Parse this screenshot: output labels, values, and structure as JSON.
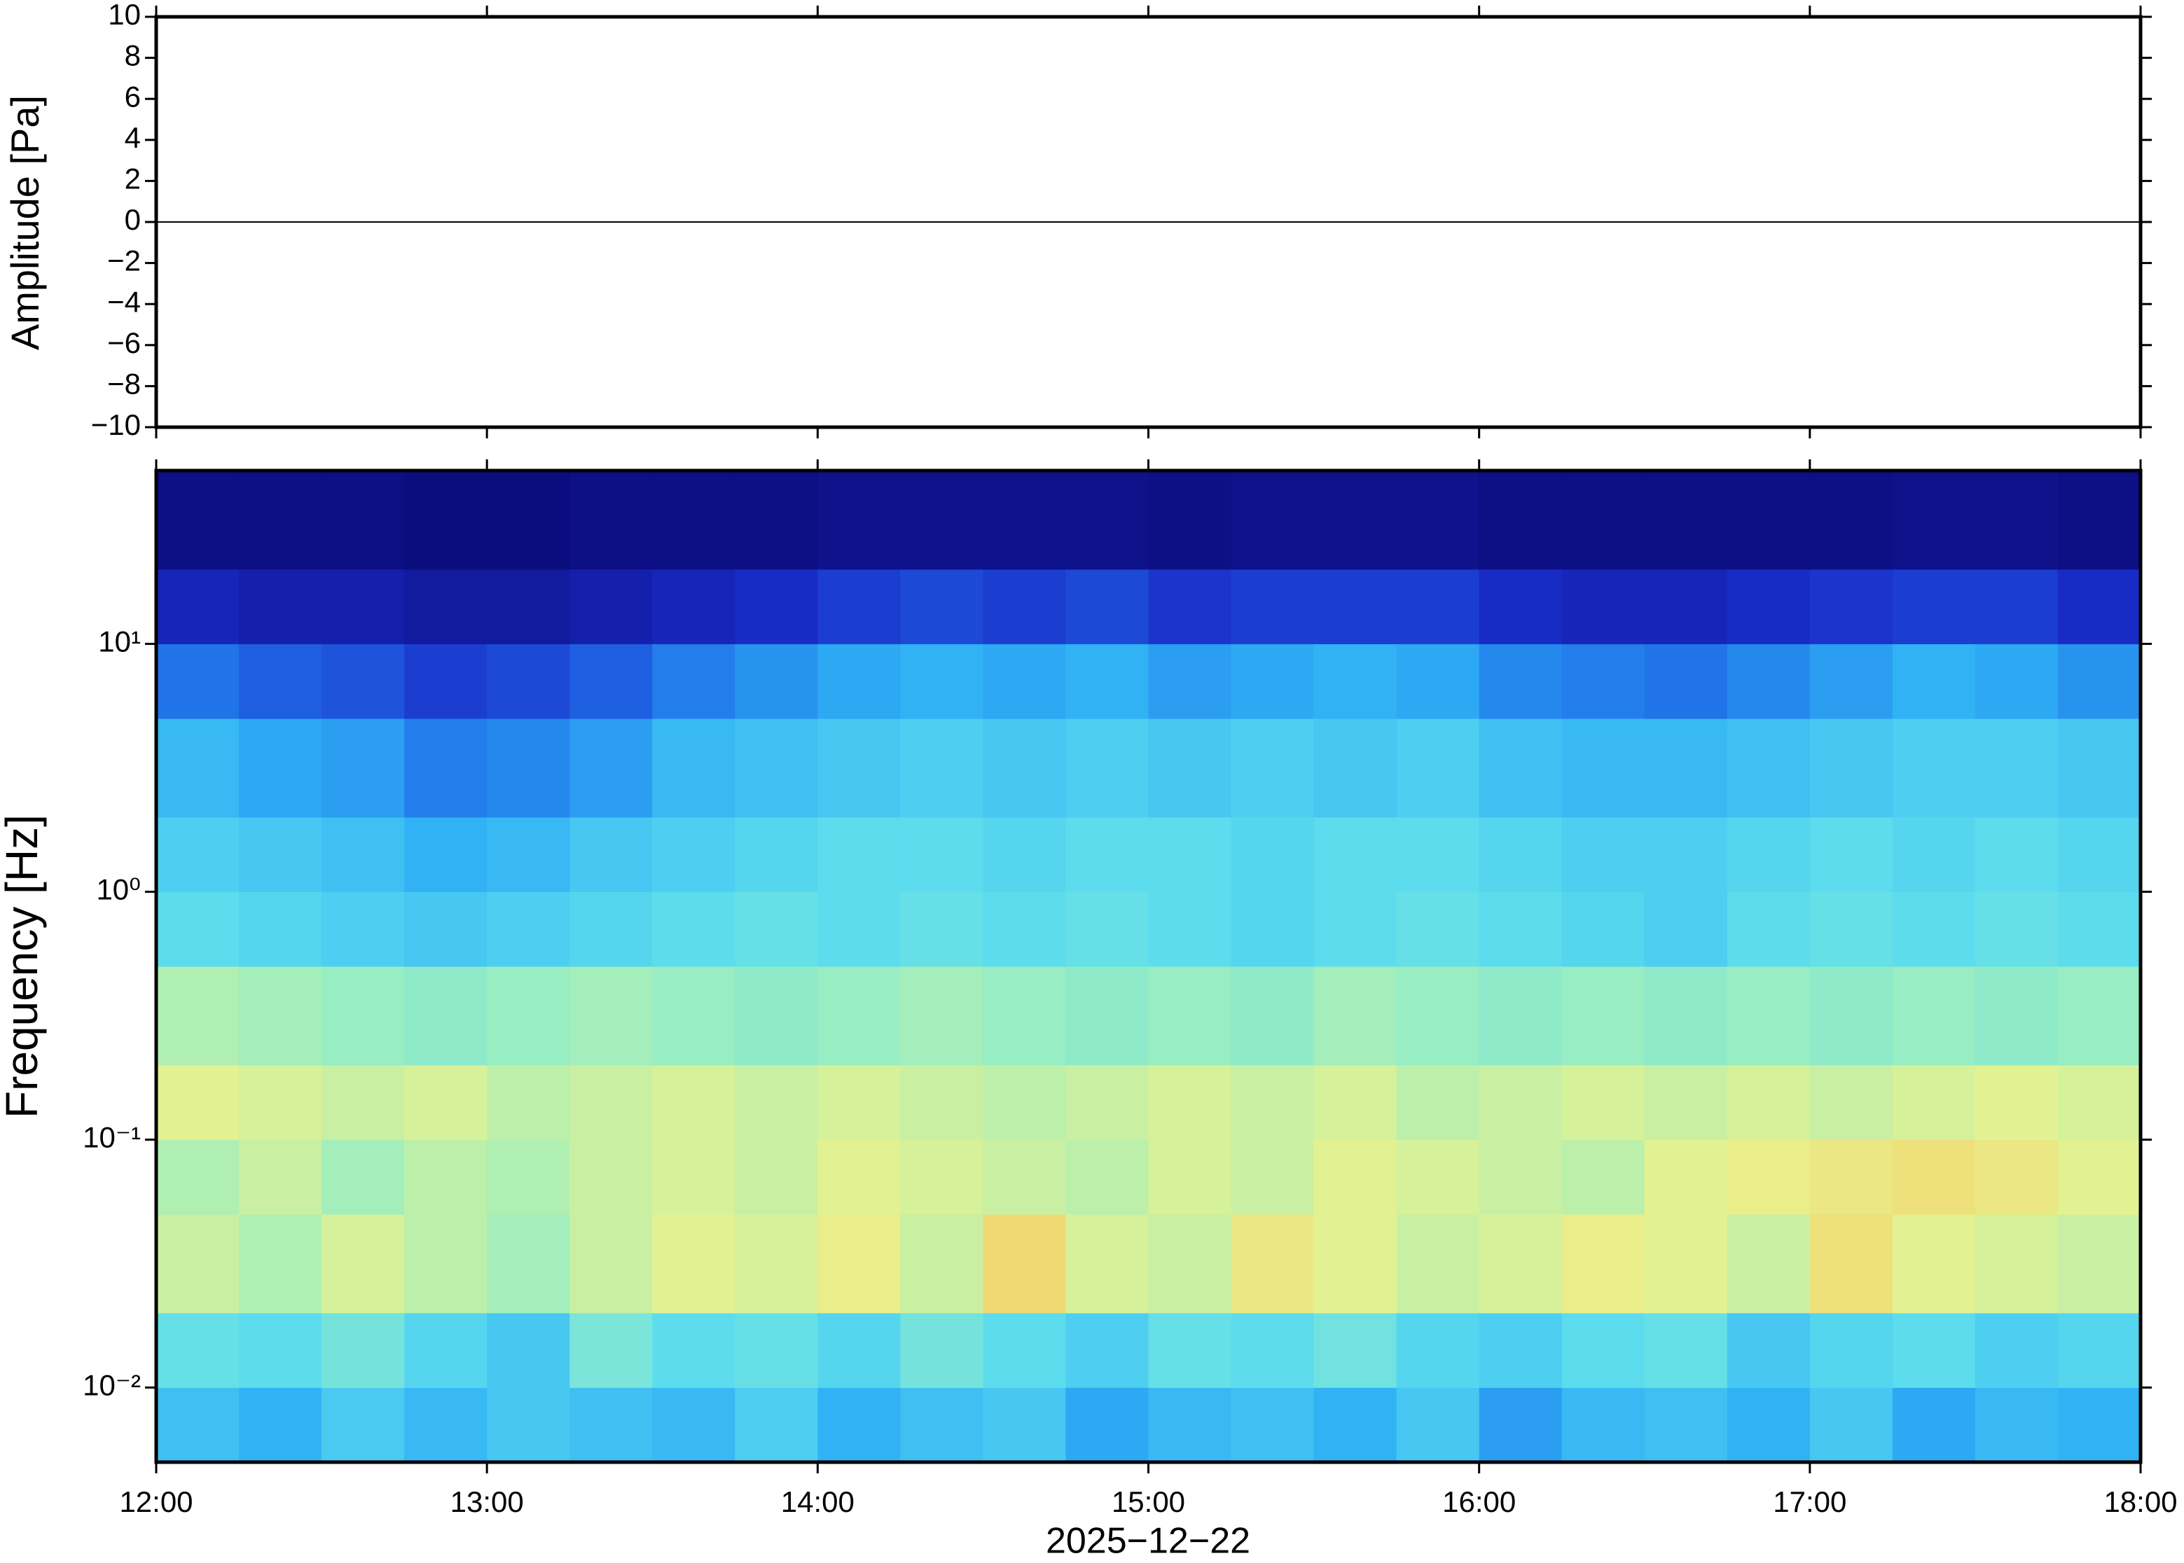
{
  "chart_data": [
    {
      "type": "line",
      "ylabel": "Amplitude [Pa]",
      "xlim": [
        12,
        18
      ],
      "ylim": [
        -10,
        10
      ],
      "yticks": [
        {
          "value": -10,
          "label": "−10"
        },
        {
          "value": -8,
          "label": "−8"
        },
        {
          "value": -6,
          "label": "−6"
        },
        {
          "value": -4,
          "label": "−4"
        },
        {
          "value": -2,
          "label": "−2"
        },
        0,
        2,
        4,
        6,
        8,
        10
      ],
      "x": [
        12,
        13,
        14,
        15,
        16,
        17,
        18
      ],
      "values": [
        0,
        0,
        0,
        0,
        0,
        0,
        0
      ],
      "color": "#000000"
    },
    {
      "type": "spectrogram",
      "ylabel": "Frequency [Hz]",
      "xlabel": "2025−12−22",
      "xlim": [
        12,
        18
      ],
      "ylim": [
        0.005,
        50
      ],
      "log_y": true,
      "xticks": [
        {
          "value": 12,
          "label": "12:00"
        },
        {
          "value": 13,
          "label": "13:00"
        },
        {
          "value": 14,
          "label": "14:00"
        },
        {
          "value": 15,
          "label": "15:00"
        },
        {
          "value": 16,
          "label": "16:00"
        },
        {
          "value": 17,
          "label": "17:00"
        },
        {
          "value": 18,
          "label": "18:00"
        }
      ],
      "yticks": [
        {
          "value": 0.01,
          "label": "10⁻²"
        },
        {
          "value": 0.1,
          "label": "10⁻¹"
        },
        {
          "value": 1,
          "label": "10⁰"
        },
        {
          "value": 10,
          "label": "10¹"
        }
      ],
      "time_bins": [
        12,
        12.25,
        12.5,
        12.75,
        13,
        13.25,
        13.5,
        13.75,
        14,
        14.25,
        14.5,
        14.75,
        15,
        15.25,
        15.5,
        15.75,
        16,
        16.25,
        16.5,
        16.75,
        17,
        17.25,
        17.5,
        17.75,
        18
      ],
      "freq_bins": [
        0.005,
        0.01,
        0.02,
        0.05,
        0.1,
        0.2,
        0.5,
        1,
        2,
        5,
        10,
        20,
        50
      ],
      "colormap": [
        "#0a0a78",
        "#1a2cc8",
        "#1f6ee8",
        "#2fb0f5",
        "#5ddcee",
        "#9aeec0",
        "#e8f28e",
        "#f6c45e",
        "#f0883a"
      ],
      "z": [
        [
          0.42,
          0.38,
          0.45,
          0.4,
          0.44,
          0.42,
          0.4,
          0.46,
          0.38,
          0.42,
          0.44,
          0.36,
          0.4,
          0.42,
          0.38,
          0.44,
          0.34,
          0.4,
          0.42,
          0.38,
          0.44,
          0.36,
          0.4,
          0.38
        ],
        [
          0.52,
          0.5,
          0.55,
          0.48,
          0.44,
          0.56,
          0.5,
          0.52,
          0.48,
          0.55,
          0.5,
          0.46,
          0.52,
          0.5,
          0.54,
          0.48,
          0.46,
          0.5,
          0.52,
          0.44,
          0.48,
          0.5,
          0.46,
          0.48
        ],
        [
          0.7,
          0.66,
          0.72,
          0.68,
          0.64,
          0.7,
          0.74,
          0.72,
          0.76,
          0.7,
          0.82,
          0.72,
          0.7,
          0.78,
          0.74,
          0.7,
          0.72,
          0.76,
          0.74,
          0.7,
          0.8,
          0.74,
          0.72,
          0.7
        ],
        [
          0.66,
          0.7,
          0.64,
          0.68,
          0.66,
          0.7,
          0.72,
          0.7,
          0.74,
          0.72,
          0.7,
          0.68,
          0.72,
          0.7,
          0.74,
          0.72,
          0.7,
          0.68,
          0.74,
          0.76,
          0.78,
          0.8,
          0.78,
          0.74
        ],
        [
          0.74,
          0.72,
          0.7,
          0.72,
          0.68,
          0.7,
          0.72,
          0.7,
          0.72,
          0.7,
          0.68,
          0.7,
          0.72,
          0.7,
          0.72,
          0.68,
          0.7,
          0.72,
          0.7,
          0.72,
          0.7,
          0.72,
          0.74,
          0.72
        ],
        [
          0.66,
          0.64,
          0.62,
          0.6,
          0.62,
          0.64,
          0.62,
          0.6,
          0.62,
          0.64,
          0.62,
          0.6,
          0.62,
          0.6,
          0.64,
          0.62,
          0.6,
          0.62,
          0.6,
          0.62,
          0.6,
          0.62,
          0.6,
          0.62
        ],
        [
          0.5,
          0.48,
          0.46,
          0.44,
          0.46,
          0.48,
          0.5,
          0.52,
          0.5,
          0.52,
          0.5,
          0.52,
          0.5,
          0.48,
          0.5,
          0.52,
          0.5,
          0.48,
          0.46,
          0.5,
          0.52,
          0.5,
          0.52,
          0.5
        ],
        [
          0.46,
          0.44,
          0.42,
          0.38,
          0.4,
          0.44,
          0.46,
          0.48,
          0.5,
          0.5,
          0.48,
          0.5,
          0.5,
          0.48,
          0.5,
          0.5,
          0.48,
          0.46,
          0.46,
          0.48,
          0.5,
          0.48,
          0.5,
          0.48
        ],
        [
          0.4,
          0.36,
          0.34,
          0.28,
          0.3,
          0.34,
          0.4,
          0.42,
          0.44,
          0.46,
          0.44,
          0.46,
          0.44,
          0.46,
          0.44,
          0.46,
          0.42,
          0.4,
          0.4,
          0.42,
          0.44,
          0.46,
          0.46,
          0.44
        ],
        [
          0.26,
          0.22,
          0.2,
          0.16,
          0.18,
          0.22,
          0.28,
          0.32,
          0.36,
          0.38,
          0.36,
          0.38,
          0.34,
          0.36,
          0.38,
          0.36,
          0.3,
          0.28,
          0.26,
          0.3,
          0.34,
          0.38,
          0.36,
          0.32
        ],
        [
          0.1,
          0.08,
          0.08,
          0.06,
          0.06,
          0.08,
          0.1,
          0.12,
          0.16,
          0.18,
          0.16,
          0.18,
          0.14,
          0.16,
          0.16,
          0.16,
          0.12,
          0.1,
          0.1,
          0.12,
          0.14,
          0.16,
          0.16,
          0.12
        ],
        [
          0.02,
          0.02,
          0.02,
          0.01,
          0.01,
          0.02,
          0.02,
          0.02,
          0.03,
          0.03,
          0.03,
          0.03,
          0.02,
          0.03,
          0.03,
          0.03,
          0.02,
          0.02,
          0.02,
          0.02,
          0.02,
          0.03,
          0.03,
          0.02
        ]
      ]
    }
  ]
}
